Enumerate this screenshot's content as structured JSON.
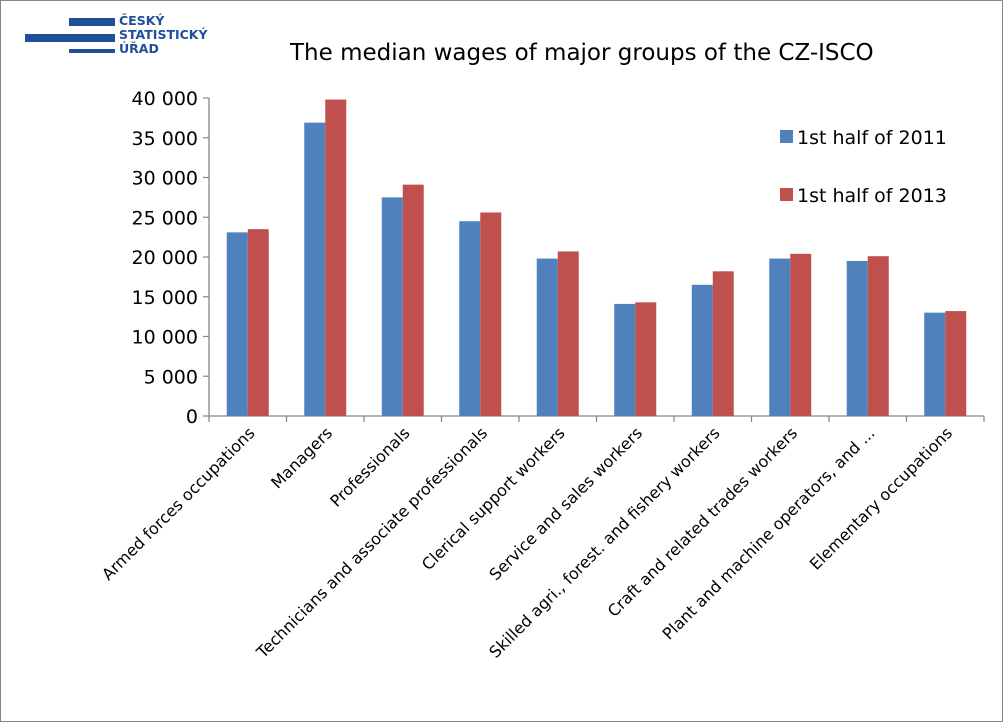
{
  "logo": {
    "lines": [
      "ČESKÝ",
      "STATISTICKÝ",
      "ÚŘAD"
    ],
    "color": "#1f4e9c"
  },
  "chart_data": {
    "type": "bar",
    "title": "The median wages of major groups of the CZ-ISCO",
    "xlabel": "",
    "ylabel": "",
    "ylim": [
      0,
      40000
    ],
    "yticks": [
      0,
      5000,
      10000,
      15000,
      20000,
      25000,
      30000,
      35000,
      40000
    ],
    "ytick_labels": [
      "0",
      "5 000",
      "10 000",
      "15 000",
      "20 000",
      "25 000",
      "30 000",
      "35 000",
      "40 000"
    ],
    "grid": false,
    "legend_position": "top-right",
    "categories": [
      "Armed forces occupations",
      "Managers",
      "Professionals",
      "Technicians and associate professionals",
      "Clerical support workers",
      "Service and sales workers",
      "Skilled agri., forest. and fishery workers",
      "Craft and related trades workers",
      "Plant and machine operators, and ...",
      "Elementary occupations"
    ],
    "series": [
      {
        "name": "1st half of 2011",
        "color": "#4f81bd",
        "values": [
          23100,
          36900,
          27500,
          24500,
          19800,
          14100,
          16500,
          19800,
          19500,
          13000
        ]
      },
      {
        "name": "1st half of 2013",
        "color": "#c0504d",
        "values": [
          23500,
          39800,
          29100,
          25600,
          20700,
          14300,
          18200,
          20400,
          20100,
          13200
        ]
      }
    ]
  }
}
